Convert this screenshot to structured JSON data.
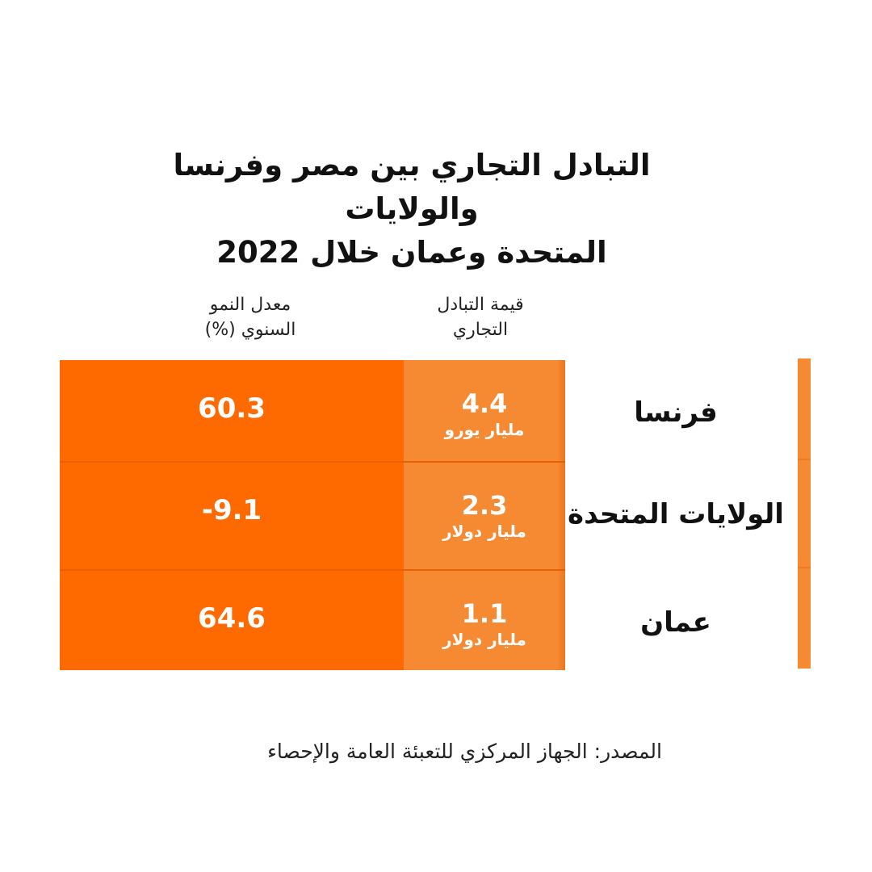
{
  "title": {
    "line1": "التبادل التجاري بين مصر وفرنسا والولايات",
    "line2": "المتحدة وعمان خلال 2022"
  },
  "columns": {
    "value": {
      "line1": "قيمة التبادل",
      "line2": "التجاري"
    },
    "growth": {
      "line1": "معدل النمو",
      "line2": "السنوي (%)"
    }
  },
  "colors": {
    "growth_cell": "#ff6a00",
    "value_cell": "#f68a33",
    "accent_bar": "#f68a33"
  },
  "chart_data": {
    "type": "table",
    "title": "التبادل التجاري بين مصر وفرنسا والولايات المتحدة وعمان خلال 2022",
    "columns": [
      "قيمة التبادل التجاري",
      "معدل النمو السنوي (%)"
    ],
    "rows": [
      {
        "country": "فرنسا",
        "value": "4.4",
        "unit": "مليار يورو",
        "growth": "60.3"
      },
      {
        "country": "الولايات المتحدة",
        "value": "2.3",
        "unit": "مليار دولار",
        "growth": "-9.1"
      },
      {
        "country": "عمان",
        "value": "1.1",
        "unit": "مليار دولار",
        "growth": "64.6"
      }
    ]
  },
  "source": "المصدر: الجهاز المركزي للتعبئة العامة والإحصاء"
}
